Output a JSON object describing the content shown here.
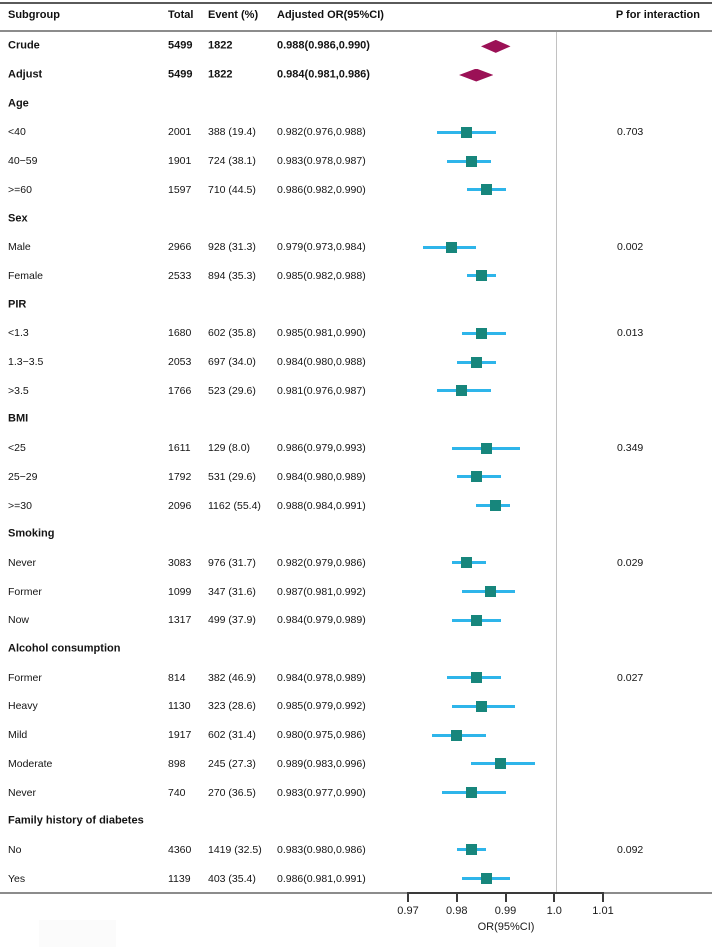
{
  "chart_data": {
    "type": "forest",
    "title": "Subgroup forest plot of adjusted odds ratios",
    "header": {
      "subgroup": "Subgroup",
      "total": "Total",
      "event": "Event (%)",
      "or": "Adjusted OR(95%CI)",
      "p": "P for interaction"
    },
    "axis": {
      "label": "OR(95%CI)",
      "min": 0.97,
      "max": 1.01,
      "ref_line": 1.0,
      "ticks": [
        {
          "v": 0.97,
          "label": "0.97"
        },
        {
          "v": 0.98,
          "label": "0.98"
        },
        {
          "v": 0.99,
          "label": "0.99"
        },
        {
          "v": 1.0,
          "label": "1.0"
        },
        {
          "v": 1.01,
          "label": "1.01"
        }
      ]
    },
    "colors": {
      "square": "#17867c",
      "ci_line": "#2eb5ea",
      "diamond": "#9b1156",
      "rule_top": "#5a5a5a",
      "rule_mid": "#8c8c8c",
      "rule_bottom": "#8c8c8c",
      "ref_line": "#c2c2c2",
      "axis": "#3a3a3a"
    },
    "rows": [
      {
        "type": "overall",
        "label": "Crude",
        "total": "5499",
        "event": "1822",
        "or_text": "0.988(0.986,0.990)",
        "or": 0.988,
        "lo": 0.986,
        "hi": 0.99
      },
      {
        "type": "overall",
        "label": "Adjust",
        "total": "5499",
        "event": "1822",
        "or_text": "0.984(0.981,0.986)",
        "or": 0.984,
        "lo": 0.981,
        "hi": 0.986
      },
      {
        "type": "section",
        "label": "Age"
      },
      {
        "type": "item",
        "label": "<40",
        "total": "2001",
        "event": "388 (19.4)",
        "or_text": "0.982(0.976,0.988)",
        "or": 0.982,
        "lo": 0.976,
        "hi": 0.988,
        "p": "0.703"
      },
      {
        "type": "item",
        "label": "40−59",
        "total": "1901",
        "event": "724 (38.1)",
        "or_text": "0.983(0.978,0.987)",
        "or": 0.983,
        "lo": 0.978,
        "hi": 0.987
      },
      {
        "type": "item",
        "label": ">=60",
        "total": "1597",
        "event": "710 (44.5)",
        "or_text": "0.986(0.982,0.990)",
        "or": 0.986,
        "lo": 0.982,
        "hi": 0.99
      },
      {
        "type": "section",
        "label": "Sex"
      },
      {
        "type": "item",
        "label": "Male",
        "total": "2966",
        "event": "928 (31.3)",
        "or_text": "0.979(0.973,0.984)",
        "or": 0.979,
        "lo": 0.973,
        "hi": 0.984,
        "p": "0.002"
      },
      {
        "type": "item",
        "label": "Female",
        "total": "2533",
        "event": "894 (35.3)",
        "or_text": "0.985(0.982,0.988)",
        "or": 0.985,
        "lo": 0.982,
        "hi": 0.988
      },
      {
        "type": "section",
        "label": "PIR"
      },
      {
        "type": "item",
        "label": "<1.3",
        "total": "1680",
        "event": "602 (35.8)",
        "or_text": "0.985(0.981,0.990)",
        "or": 0.985,
        "lo": 0.981,
        "hi": 0.99,
        "p": "0.013"
      },
      {
        "type": "item",
        "label": "1.3−3.5",
        "total": "2053",
        "event": "697 (34.0)",
        "or_text": "0.984(0.980,0.988)",
        "or": 0.984,
        "lo": 0.98,
        "hi": 0.988
      },
      {
        "type": "item",
        "label": ">3.5",
        "total": "1766",
        "event": "523 (29.6)",
        "or_text": "0.981(0.976,0.987)",
        "or": 0.981,
        "lo": 0.976,
        "hi": 0.987
      },
      {
        "type": "section",
        "label": "BMI"
      },
      {
        "type": "item",
        "label": "<25",
        "total": "1611",
        "event": "129 (8.0)",
        "or_text": "0.986(0.979,0.993)",
        "or": 0.986,
        "lo": 0.979,
        "hi": 0.993,
        "p": "0.349"
      },
      {
        "type": "item",
        "label": "25−29",
        "total": "1792",
        "event": "531 (29.6)",
        "or_text": "0.984(0.980,0.989)",
        "or": 0.984,
        "lo": 0.98,
        "hi": 0.989
      },
      {
        "type": "item",
        "label": ">=30",
        "total": "2096",
        "event": "1162 (55.4)",
        "or_text": "0.988(0.984,0.991)",
        "or": 0.988,
        "lo": 0.984,
        "hi": 0.991
      },
      {
        "type": "section",
        "label": "Smoking"
      },
      {
        "type": "item",
        "label": "Never",
        "total": "3083",
        "event": "976 (31.7)",
        "or_text": "0.982(0.979,0.986)",
        "or": 0.982,
        "lo": 0.979,
        "hi": 0.986,
        "p": "0.029"
      },
      {
        "type": "item",
        "label": "Former",
        "total": "1099",
        "event": "347 (31.6)",
        "or_text": "0.987(0.981,0.992)",
        "or": 0.987,
        "lo": 0.981,
        "hi": 0.992
      },
      {
        "type": "item",
        "label": "Now",
        "total": "1317",
        "event": "499 (37.9)",
        "or_text": "0.984(0.979,0.989)",
        "or": 0.984,
        "lo": 0.979,
        "hi": 0.989
      },
      {
        "type": "section",
        "label": "Alcohol consumption"
      },
      {
        "type": "item",
        "label": "Former",
        "total": "814",
        "event": "382 (46.9)",
        "or_text": "0.984(0.978,0.989)",
        "or": 0.984,
        "lo": 0.978,
        "hi": 0.989,
        "p": "0.027"
      },
      {
        "type": "item",
        "label": "Heavy",
        "total": "1130",
        "event": "323 (28.6)",
        "or_text": "0.985(0.979,0.992)",
        "or": 0.985,
        "lo": 0.979,
        "hi": 0.992
      },
      {
        "type": "item",
        "label": "Mild",
        "total": "1917",
        "event": "602 (31.4)",
        "or_text": "0.980(0.975,0.986)",
        "or": 0.98,
        "lo": 0.975,
        "hi": 0.986
      },
      {
        "type": "item",
        "label": "Moderate",
        "total": "898",
        "event": "245 (27.3)",
        "or_text": "0.989(0.983,0.996)",
        "or": 0.989,
        "lo": 0.983,
        "hi": 0.996
      },
      {
        "type": "item",
        "label": "Never",
        "total": "740",
        "event": "270 (36.5)",
        "or_text": "0.983(0.977,0.990)",
        "or": 0.983,
        "lo": 0.977,
        "hi": 0.99
      },
      {
        "type": "section",
        "label": "Family history of diabetes"
      },
      {
        "type": "item",
        "label": "No",
        "total": "4360",
        "event": "1419 (32.5)",
        "or_text": "0.983(0.980,0.986)",
        "or": 0.983,
        "lo": 0.98,
        "hi": 0.986,
        "p": "0.092"
      },
      {
        "type": "item",
        "label": "Yes",
        "total": "1139",
        "event": "403 (35.4)",
        "or_text": "0.986(0.981,0.991)",
        "or": 0.986,
        "lo": 0.981,
        "hi": 0.991
      }
    ]
  }
}
